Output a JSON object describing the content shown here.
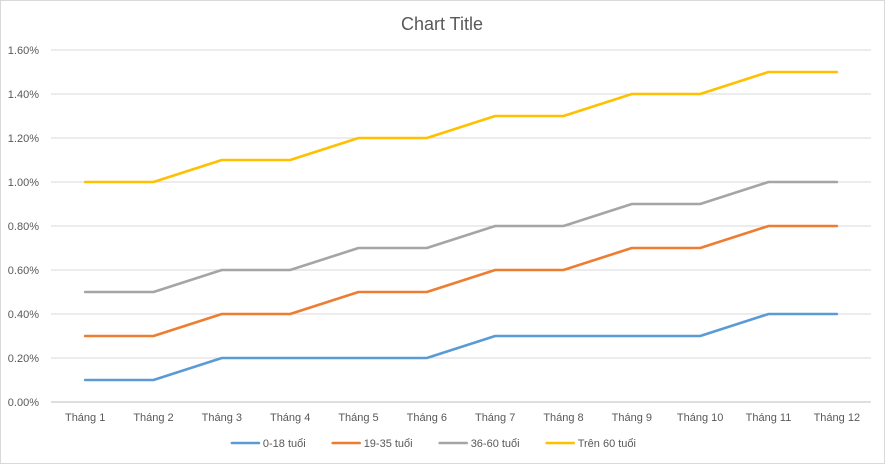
{
  "chart_data": {
    "type": "line",
    "title": "Chart Title",
    "xlabel": "",
    "ylabel": "",
    "categories": [
      "Tháng 1",
      "Tháng 2",
      "Tháng 3",
      "Tháng 4",
      "Tháng 5",
      "Tháng 6",
      "Tháng 7",
      "Tháng 8",
      "Tháng 9",
      "Tháng 10",
      "Tháng 11",
      "Tháng 12"
    ],
    "ylim": [
      0,
      0.016
    ],
    "yticks": [
      "0.00%",
      "0.20%",
      "0.40%",
      "0.60%",
      "0.80%",
      "1.00%",
      "1.20%",
      "1.40%",
      "1.60%"
    ],
    "grid": true,
    "legend_position": "bottom",
    "series": [
      {
        "name": "0-18 tuổi",
        "color": "#5b9bd5",
        "values": [
          0.001,
          0.001,
          0.002,
          0.002,
          0.002,
          0.002,
          0.003,
          0.003,
          0.003,
          0.003,
          0.004,
          0.004
        ]
      },
      {
        "name": "19-35 tuổi",
        "color": "#ed7d31",
        "values": [
          0.003,
          0.003,
          0.004,
          0.004,
          0.005,
          0.005,
          0.006,
          0.006,
          0.007,
          0.007,
          0.008,
          0.008
        ]
      },
      {
        "name": "36-60 tuổi",
        "color": "#a5a5a5",
        "values": [
          0.005,
          0.005,
          0.006,
          0.006,
          0.007,
          0.007,
          0.008,
          0.008,
          0.009,
          0.009,
          0.01,
          0.01
        ]
      },
      {
        "name": "Trên 60 tuổi",
        "color": "#ffc000",
        "values": [
          0.01,
          0.01,
          0.011,
          0.011,
          0.012,
          0.012,
          0.013,
          0.013,
          0.014,
          0.014,
          0.015,
          0.015
        ]
      }
    ]
  }
}
